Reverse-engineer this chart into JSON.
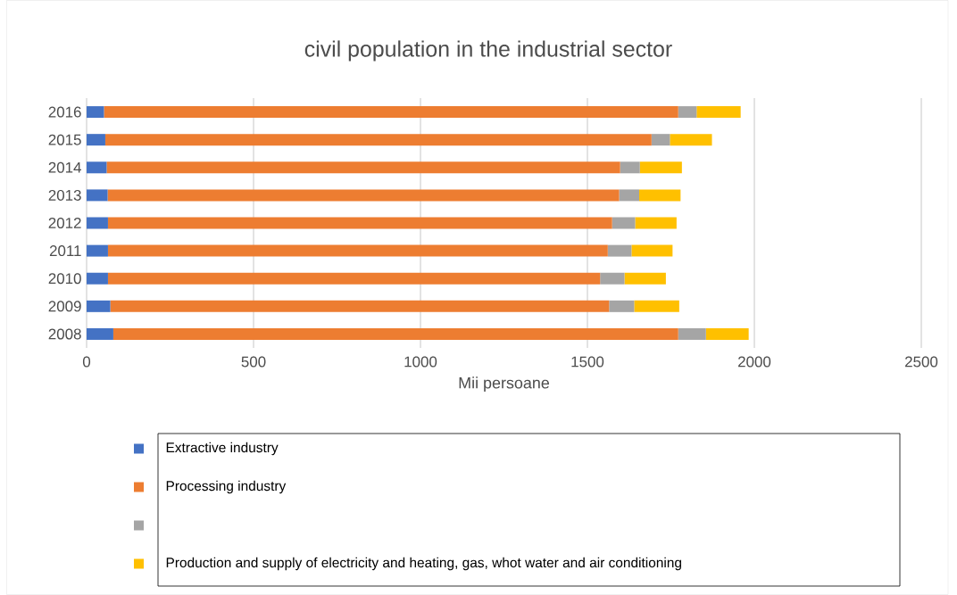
{
  "chart_data": {
    "type": "bar",
    "orientation": "horizontal",
    "stacked": true,
    "title": "civil population in the industrial sector",
    "xlabel": "Mii persoane",
    "categories": [
      "2016",
      "2015",
      "2014",
      "2013",
      "2012",
      "2011",
      "2010",
      "2009",
      "2008"
    ],
    "series": [
      {
        "name": "Extractive industry",
        "color": "#4472c4",
        "values": [
          52,
          56,
          60,
          63,
          64,
          64,
          64,
          71,
          80
        ]
      },
      {
        "name": "Processing industry",
        "color": "#ed7d31",
        "values": [
          1720,
          1636,
          1538,
          1532,
          1510,
          1497,
          1474,
          1494,
          1692
        ]
      },
      {
        "color": "#a5a5a5",
        "values": [
          55,
          55,
          59,
          60,
          69,
          71,
          73,
          75,
          83
        ]
      },
      {
        "name": "Production and supply of electricity and heating, gas, whot water and air conditioning",
        "color": "#ffc000",
        "values": [
          132,
          126,
          126,
          124,
          124,
          123,
          124,
          135,
          128
        ]
      }
    ],
    "xlim": [
      0,
      2500
    ],
    "xticks": [
      0,
      500,
      1000,
      1500,
      2000,
      2500
    ],
    "grid": "x",
    "legend": "bottom"
  }
}
